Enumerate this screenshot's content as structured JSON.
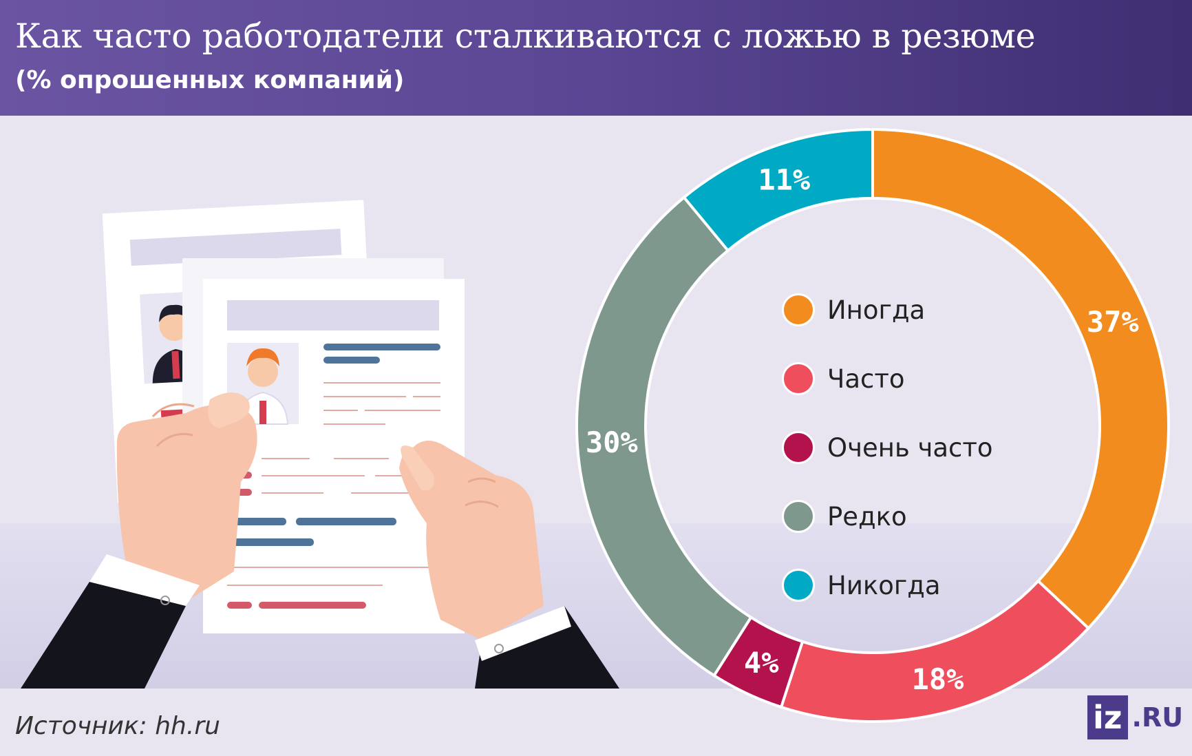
{
  "header": {
    "title": "Как часто работодатели сталкиваются с ложью в резюме",
    "subtitle": "(% опрошенных компаний)"
  },
  "source": "Источник: hh.ru",
  "logo": {
    "box": "iz",
    "text": ".RU"
  },
  "chart_data": {
    "type": "pie",
    "style": "donut",
    "start_angle_deg": 0,
    "slices": [
      {
        "name": "Иногда",
        "value": 37,
        "label": "37%",
        "color": "#f28c1f"
      },
      {
        "name": "Часто",
        "value": 18,
        "label": "18%",
        "color": "#ef4e5c"
      },
      {
        "name": "Очень часто",
        "value": 4,
        "label": "4%",
        "color": "#b3124c"
      },
      {
        "name": "Редко",
        "value": 30,
        "label": "30%",
        "color": "#7f988e"
      },
      {
        "name": "Никогда",
        "value": 11,
        "label": "11%",
        "color": "#00a9c4"
      }
    ],
    "legend_placement": "center"
  },
  "colors": {
    "header_start": "#6b55a3",
    "header_end": "#3f2e72",
    "background": "#e8e5f1"
  }
}
